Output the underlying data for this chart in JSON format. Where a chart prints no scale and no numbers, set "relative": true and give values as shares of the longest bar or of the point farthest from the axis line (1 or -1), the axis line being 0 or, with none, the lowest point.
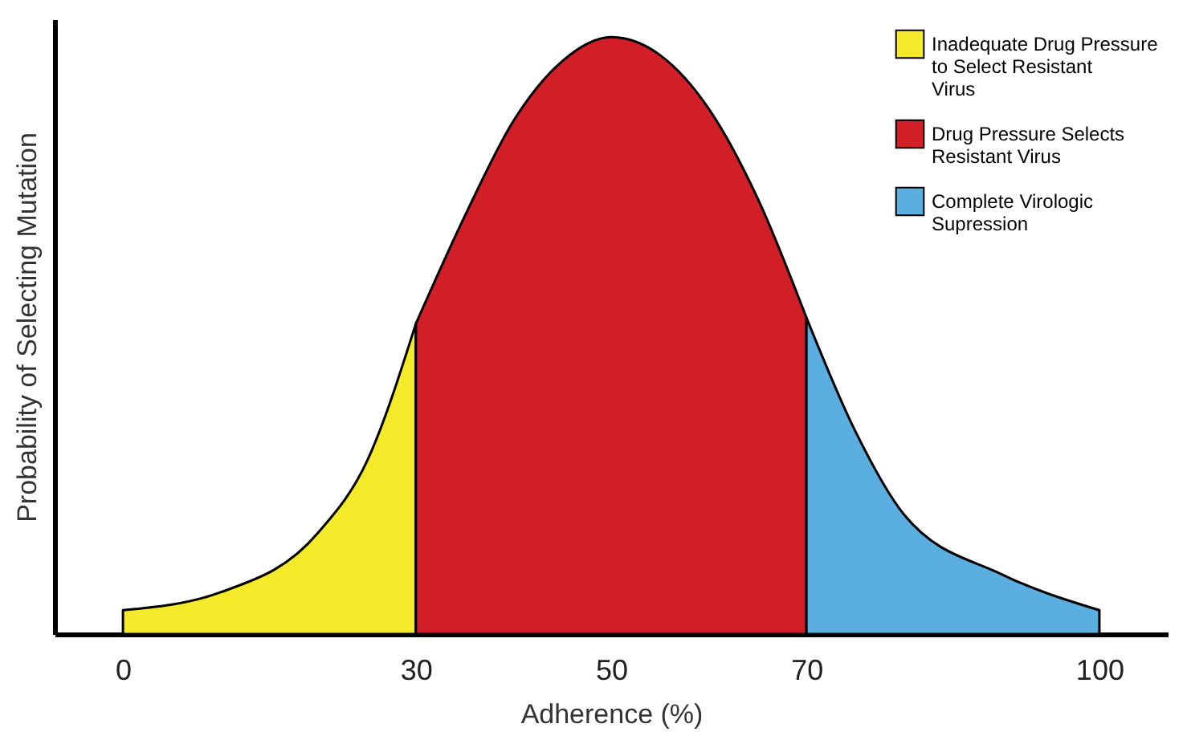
{
  "chart_data": {
    "type": "area",
    "relative": true,
    "xlabel": "Adherence (%)",
    "ylabel": "Probability of Selecting Mutation",
    "xlim": [
      -7,
      107
    ],
    "xticks": [
      0,
      30,
      50,
      70,
      100
    ],
    "legend": "top right",
    "grid": false,
    "series": [
      {
        "name": "Inadequate Drug Pressure to Select Resistant Virus",
        "color": "#f4ea2a",
        "x": [
          0,
          10,
          20,
          25,
          30
        ],
        "values": [
          0.04,
          0.07,
          0.17,
          0.29,
          0.52
        ]
      },
      {
        "name": "Drug Pressure Selects Resistant Virus",
        "color": "#d21e27",
        "x": [
          30,
          35,
          40,
          45,
          50,
          55,
          60,
          65,
          70
        ],
        "values": [
          0.52,
          0.7,
          0.86,
          0.96,
          1,
          0.97,
          0.88,
          0.73,
          0.53
        ]
      },
      {
        "name": "Complete Virologic Supression",
        "color": "#5aaee0",
        "x": [
          70,
          75,
          80,
          90,
          100
        ],
        "values": [
          0.53,
          0.34,
          0.2,
          0.1,
          0.04
        ]
      }
    ]
  }
}
